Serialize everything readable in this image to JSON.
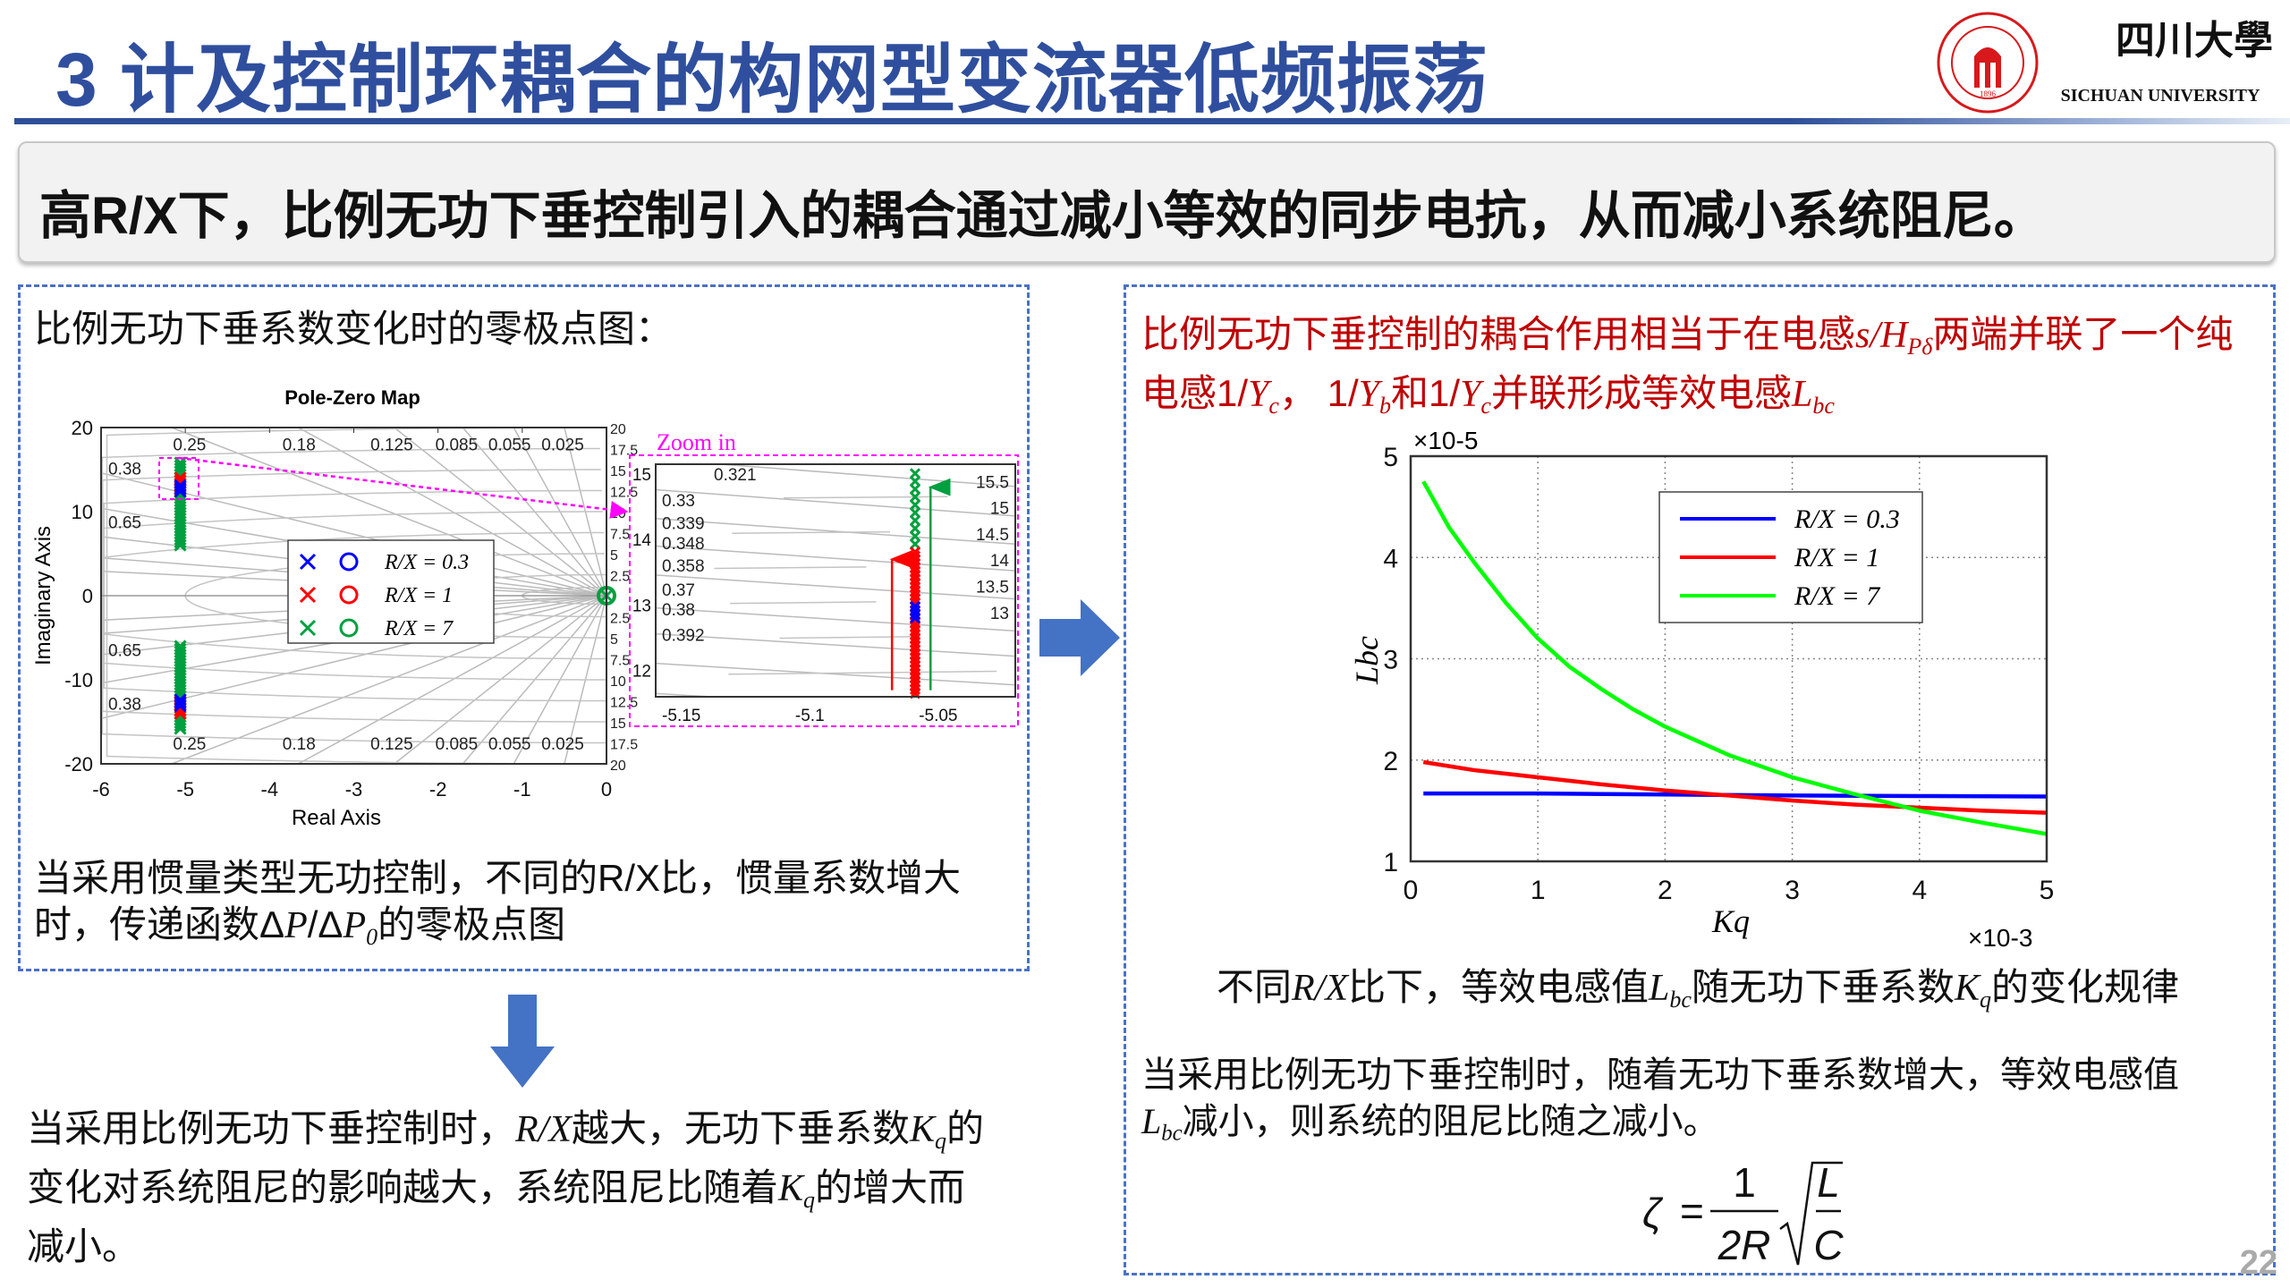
{
  "header": {
    "title": "3 计及控制环耦合的构网型变流器低频振荡",
    "logo": {
      "cn": "四川大學",
      "en": "SICHUAN UNIVERSITY",
      "year": "1896",
      "color": "#d7191c"
    },
    "accent": "#2f4f9e"
  },
  "summary": "高R/X下，比例无功下垂控制引入的耦合通过减小等效的同步电抗，从而减小系统阻尼。",
  "left": {
    "heading": "比例无功下垂系数变化时的零极点图：",
    "caption": [
      [
        {
          "t": "当采用惯量类型无功控制，不同的R/X比，惯量系数增大"
        }
      ],
      [
        {
          "t": "时，传递函数Δ"
        },
        {
          "t": "P",
          "s": "i"
        },
        {
          "t": "/Δ"
        },
        {
          "t": "P",
          "s": "i"
        },
        {
          "t": "0",
          "s": "sub"
        },
        {
          "t": "的零极点图"
        }
      ]
    ],
    "conclusion": [
      [
        {
          "t": "当采用比例无功下垂控制时，"
        },
        {
          "t": "R/X",
          "s": "i"
        },
        {
          "t": "越大，无功下垂系数"
        },
        {
          "t": "K",
          "s": "i"
        },
        {
          "t": "q",
          "s": "sub"
        },
        {
          "t": "的"
        }
      ],
      [
        {
          "t": "变化对系统阻尼的影响越大，系统阻尼比随着"
        },
        {
          "t": "K",
          "s": "i"
        },
        {
          "t": "q",
          "s": "sub"
        },
        {
          "t": "的增大而"
        }
      ],
      [
        {
          "t": "减小。"
        }
      ]
    ]
  },
  "right": {
    "heading": [
      [
        {
          "t": "比例无功下垂控制的耦合作用相当于在电感"
        },
        {
          "t": "s/H",
          "s": "i"
        },
        {
          "t": "Pδ",
          "s": "sub"
        },
        {
          "t": "两端并联了一个纯"
        }
      ],
      [
        {
          "t": "电感1/"
        },
        {
          "t": "Y",
          "s": "i"
        },
        {
          "t": "c",
          "s": "sub"
        },
        {
          "t": "，  1/"
        },
        {
          "t": "Y",
          "s": "i"
        },
        {
          "t": "b",
          "s": "sub"
        },
        {
          "t": "和1/"
        },
        {
          "t": "Y",
          "s": "i"
        },
        {
          "t": "c",
          "s": "sub"
        },
        {
          "t": "并联形成等效电感"
        },
        {
          "t": "L",
          "s": "i"
        },
        {
          "t": "bc",
          "s": "sub"
        }
      ]
    ],
    "chart_caption": [
      [
        {
          "t": "不同"
        },
        {
          "t": "R/X",
          "s": "i"
        },
        {
          "t": "比下，等效电感值"
        },
        {
          "t": "L",
          "s": "i"
        },
        {
          "t": "bc",
          "s": "sub"
        },
        {
          "t": "随无功下垂系数"
        },
        {
          "t": "K",
          "s": "i"
        },
        {
          "t": "q",
          "s": "sub"
        },
        {
          "t": "的变化规律"
        }
      ]
    ],
    "conclusion": [
      [
        {
          "t": "当采用比例无功下垂控制时，随着无功下垂系数增大，等效电感值"
        }
      ],
      [
        {
          "t": "L",
          "s": "i"
        },
        {
          "t": "bc",
          "s": "sub"
        },
        {
          "t": "减小，则系统的阻尼比随之减小。"
        }
      ]
    ],
    "formula": {
      "lhs": "ζ",
      "eq": "=",
      "num": "1",
      "den": "2R",
      "rnum": "L",
      "rden": "C"
    }
  },
  "page_number": "22",
  "chart_data": [
    {
      "type": "scatter",
      "title": "Pole-Zero Map",
      "xlabel": "Real Axis",
      "ylabel": "Imaginary Axis",
      "xlim": [
        -6,
        0
      ],
      "ylim": [
        -20,
        20
      ],
      "xticks": [
        -6,
        -5,
        -4,
        -3,
        -2,
        -1,
        0
      ],
      "yticks": [
        -20,
        -10,
        0,
        10,
        20
      ],
      "grid": true,
      "damping_labels": [
        "0.25",
        "0.18",
        "0.125",
        "0.085",
        "0.055",
        "0.025",
        "0.38",
        "0.65"
      ],
      "damping_values": [
        0.25,
        0.18,
        0.125,
        0.085,
        0.055,
        0.025,
        0.38,
        0.65
      ],
      "frequency_labels": [
        "2.5",
        "5",
        "7.5",
        "10",
        "12.5",
        "15",
        "17.5",
        "20"
      ],
      "frequency_values": [
        2.5,
        5,
        7.5,
        10,
        12.5,
        15,
        17.5,
        20
      ],
      "legend": {
        "placement": "center",
        "entries": [
          {
            "label": "R/X = 0.3",
            "color": "#0000ff"
          },
          {
            "label": "R/X = 1",
            "color": "#ff0000"
          },
          {
            "label": "R/X = 7",
            "color": "#00a040"
          }
        ]
      },
      "poles": [
        {
          "series": "R/X = 7",
          "real": -5.06,
          "imag_range": [
            6,
            16
          ],
          "color": "#00a040"
        },
        {
          "series": "R/X = 1",
          "real": -5.06,
          "imag_range": [
            12.6,
            14
          ],
          "color": "#ff0000"
        },
        {
          "series": "R/X = 0.3",
          "real": -5.06,
          "imag_range": [
            12.4,
            13.4
          ],
          "color": "#0000ff"
        }
      ],
      "zeros": [
        {
          "real": 0,
          "imag": 0,
          "color": "#00a040"
        }
      ],
      "inset": {
        "label": "Zoom in",
        "label_color": "#ff00ff",
        "xlim": [
          -5.16,
          -5.02
        ],
        "ylim": [
          11.6,
          15.15
        ],
        "xticks": [
          -5.15,
          -5.1,
          -5.05
        ],
        "yticks": [
          12,
          13,
          14,
          15
        ],
        "damping_labels": [
          "0.321",
          "0.33",
          "0.339",
          "0.348",
          "0.358",
          "0.37",
          "0.38",
          "0.392"
        ],
        "frequency_labels": [
          "15.5",
          "15",
          "14.5",
          "14",
          "13.5",
          "13"
        ],
        "poles": [
          {
            "series": "R/X = 7",
            "real": -5.059,
            "imag_range": [
              11.65,
              15.05
            ],
            "color": "#00a040"
          },
          {
            "series": "R/X = 1",
            "real": -5.059,
            "imag_range": [
              11.65,
              13.85
            ],
            "color": "#ff0000"
          },
          {
            "series": "R/X = 0.3",
            "real": -5.059,
            "imag_range": [
              12.8,
              13.0
            ],
            "color": "#0000ff"
          }
        ],
        "arrows": [
          {
            "color": "#ff0000",
            "real": -5.068,
            "from": 11.7,
            "to": 13.7
          },
          {
            "color": "#00a040",
            "real": -5.053,
            "from": 11.7,
            "to": 14.8
          }
        ]
      }
    },
    {
      "type": "line",
      "xlabel": "Kq",
      "ylabel": "Lbc",
      "x_multiplier": "×10-3",
      "y_multiplier": "×10-5",
      "xlim": [
        0,
        5
      ],
      "ylim": [
        1,
        5
      ],
      "xticks": [
        0,
        1,
        2,
        3,
        4,
        5
      ],
      "yticks": [
        1,
        2,
        3,
        4,
        5
      ],
      "grid": true,
      "legend_placement": "top-right",
      "series": [
        {
          "name": "R/X = 0.3",
          "color": "#0000ff",
          "x": [
            0.1,
            1,
            2,
            3,
            4,
            5
          ],
          "y": [
            1.67,
            1.67,
            1.66,
            1.65,
            1.645,
            1.64
          ]
        },
        {
          "name": "R/X = 1",
          "color": "#ff0000",
          "x": [
            0.1,
            0.5,
            1,
            1.5,
            2,
            2.5,
            3,
            3.5,
            4,
            4.5,
            5
          ],
          "y": [
            1.98,
            1.9,
            1.83,
            1.76,
            1.7,
            1.65,
            1.6,
            1.56,
            1.53,
            1.5,
            1.48
          ]
        },
        {
          "name": "R/X = 7",
          "color": "#00ff00",
          "x": [
            0.1,
            0.3,
            0.5,
            0.75,
            1,
            1.25,
            1.5,
            1.75,
            2,
            2.5,
            3,
            3.5,
            4,
            4.5,
            5
          ],
          "y": [
            4.75,
            4.3,
            3.95,
            3.55,
            3.2,
            2.92,
            2.7,
            2.5,
            2.33,
            2.05,
            1.83,
            1.66,
            1.5,
            1.38,
            1.27
          ]
        }
      ]
    }
  ]
}
